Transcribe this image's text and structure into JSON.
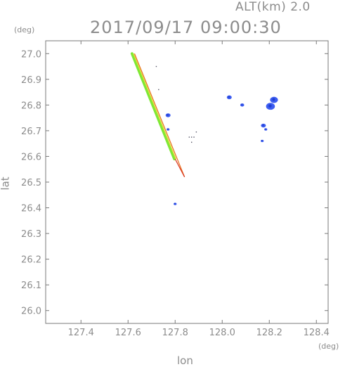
{
  "header": {
    "altitude_label": "ALT(km) 2.0",
    "timestamp": "2017/09/17 09:00:30"
  },
  "chart_data": {
    "type": "scatter",
    "title": "2017/09/17 09:00:30",
    "xlabel": "lon",
    "ylabel": "lat",
    "xunit": "(deg)",
    "yunit": "(deg)",
    "xlim": [
      127.25,
      128.45
    ],
    "ylim": [
      25.95,
      27.05
    ],
    "xticks": [
      "127.4",
      "127.6",
      "127.8",
      "128.0",
      "128.2",
      "128.4"
    ],
    "yticks": [
      "27.0",
      "26.9",
      "26.8",
      "26.7",
      "26.6",
      "26.5",
      "26.4",
      "26.3",
      "26.2",
      "26.1",
      "26.0"
    ],
    "grid": false,
    "colors": {
      "axis": "#7a7a7a",
      "label": "#8c8c8c",
      "echo_blue": "#3c5cf0",
      "echo_blue_dark": "#1f3fd0",
      "line_green": "#7ee835",
      "line_yellow": "#d8e23a",
      "line_orange": "#e8701e",
      "line_red": "#d8321a"
    },
    "swath": {
      "start": [
        127.62,
        27.0
      ],
      "end": [
        127.8,
        26.59
      ],
      "tail_end": [
        127.84,
        26.52
      ]
    },
    "echo_blobs": [
      {
        "lon": 127.77,
        "lat": 26.76,
        "size": 5
      },
      {
        "lon": 127.77,
        "lat": 26.705,
        "size": 3
      },
      {
        "lon": 127.8,
        "lat": 26.415,
        "size": 3
      },
      {
        "lon": 128.03,
        "lat": 26.83,
        "size": 5
      },
      {
        "lon": 128.085,
        "lat": 26.8,
        "size": 4
      },
      {
        "lon": 128.22,
        "lat": 26.82,
        "size": 8
      },
      {
        "lon": 128.205,
        "lat": 26.795,
        "size": 9
      },
      {
        "lon": 128.175,
        "lat": 26.72,
        "size": 5
      },
      {
        "lon": 128.185,
        "lat": 26.705,
        "size": 3
      },
      {
        "lon": 128.17,
        "lat": 26.66,
        "size": 3
      }
    ],
    "small_marks": [
      {
        "lon": 127.86,
        "lat": 26.675
      },
      {
        "lon": 127.87,
        "lat": 26.675
      },
      {
        "lon": 127.88,
        "lat": 26.675
      },
      {
        "lon": 127.89,
        "lat": 26.695
      },
      {
        "lon": 127.87,
        "lat": 26.655
      },
      {
        "lon": 127.73,
        "lat": 26.86
      },
      {
        "lon": 127.72,
        "lat": 26.95
      }
    ]
  }
}
